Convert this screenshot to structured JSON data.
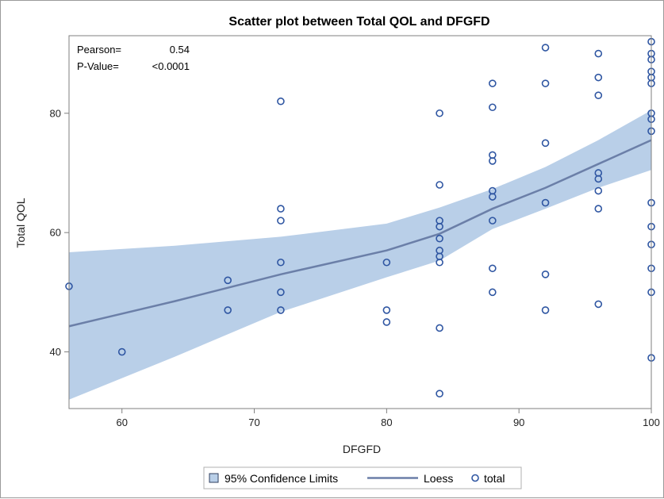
{
  "chart_data": {
    "type": "scatter",
    "title": "Scatter plot between Total QOL and DFGFD",
    "xlabel": "DFGFD",
    "ylabel": "Total QOL",
    "xlim": [
      56,
      100
    ],
    "ylim": [
      30.5,
      93
    ],
    "x_ticks": [
      60,
      70,
      80,
      90,
      100
    ],
    "y_ticks": [
      40,
      60,
      80
    ],
    "grid": false,
    "legend_position": "bottom",
    "stats": {
      "pearson_label": "Pearson=",
      "pearson_value": "0.54",
      "pvalue_label": "P-Value=",
      "pvalue_value": "<0.0001"
    },
    "legend": [
      "95% Confidence Limits",
      "Loess",
      "total"
    ],
    "colors": {
      "band": "#b9cfe8",
      "loess": "#6b7fa8",
      "marker": "#2f56a2",
      "frame": "#7f7f7f"
    },
    "series": [
      {
        "name": "total",
        "kind": "scatter",
        "points": [
          [
            56,
            51
          ],
          [
            60,
            40
          ],
          [
            68,
            52
          ],
          [
            68,
            47
          ],
          [
            72,
            82
          ],
          [
            72,
            64
          ],
          [
            72,
            62
          ],
          [
            72,
            55
          ],
          [
            72,
            50
          ],
          [
            72,
            47
          ],
          [
            80,
            55
          ],
          [
            80,
            47
          ],
          [
            80,
            45
          ],
          [
            84,
            80
          ],
          [
            84,
            68
          ],
          [
            84,
            62
          ],
          [
            84,
            61
          ],
          [
            84,
            59
          ],
          [
            84,
            57
          ],
          [
            84,
            56
          ],
          [
            84,
            55
          ],
          [
            84,
            44
          ],
          [
            84,
            33
          ],
          [
            88,
            85
          ],
          [
            88,
            81
          ],
          [
            88,
            73
          ],
          [
            88,
            72
          ],
          [
            88,
            67
          ],
          [
            88,
            66
          ],
          [
            88,
            62
          ],
          [
            88,
            54
          ],
          [
            88,
            50
          ],
          [
            92,
            91
          ],
          [
            92,
            85
          ],
          [
            92,
            75
          ],
          [
            92,
            65
          ],
          [
            92,
            53
          ],
          [
            92,
            47
          ],
          [
            96,
            90
          ],
          [
            96,
            86
          ],
          [
            96,
            83
          ],
          [
            96,
            70
          ],
          [
            96,
            69
          ],
          [
            96,
            67
          ],
          [
            96,
            64
          ],
          [
            96,
            48
          ],
          [
            100,
            92
          ],
          [
            100,
            90
          ],
          [
            100,
            89
          ],
          [
            100,
            87
          ],
          [
            100,
            86
          ],
          [
            100,
            85
          ],
          [
            100,
            80
          ],
          [
            100,
            79
          ],
          [
            100,
            77
          ],
          [
            100,
            65
          ],
          [
            100,
            61
          ],
          [
            100,
            58
          ],
          [
            100,
            54
          ],
          [
            100,
            50
          ],
          [
            100,
            39
          ]
        ]
      },
      {
        "name": "Loess",
        "kind": "line",
        "points": [
          [
            56,
            44.3
          ],
          [
            64,
            48.5
          ],
          [
            72,
            53
          ],
          [
            80,
            57
          ],
          [
            84,
            59.8
          ],
          [
            88,
            64
          ],
          [
            92,
            67.5
          ],
          [
            96,
            71.5
          ],
          [
            100,
            75.5
          ]
        ]
      },
      {
        "name": "95% Confidence Limits",
        "kind": "band",
        "upper": [
          [
            56,
            56.7
          ],
          [
            64,
            57.8
          ],
          [
            72,
            59.3
          ],
          [
            80,
            61.5
          ],
          [
            84,
            64.2
          ],
          [
            88,
            67.3
          ],
          [
            92,
            71
          ],
          [
            96,
            75.5
          ],
          [
            100,
            80.5
          ]
        ],
        "lower": [
          [
            56,
            32
          ],
          [
            64,
            39.2
          ],
          [
            72,
            46.7
          ],
          [
            80,
            52.5
          ],
          [
            84,
            55.3
          ],
          [
            88,
            60.6
          ],
          [
            92,
            64
          ],
          [
            96,
            67.5
          ],
          [
            100,
            70.5
          ]
        ]
      }
    ]
  }
}
